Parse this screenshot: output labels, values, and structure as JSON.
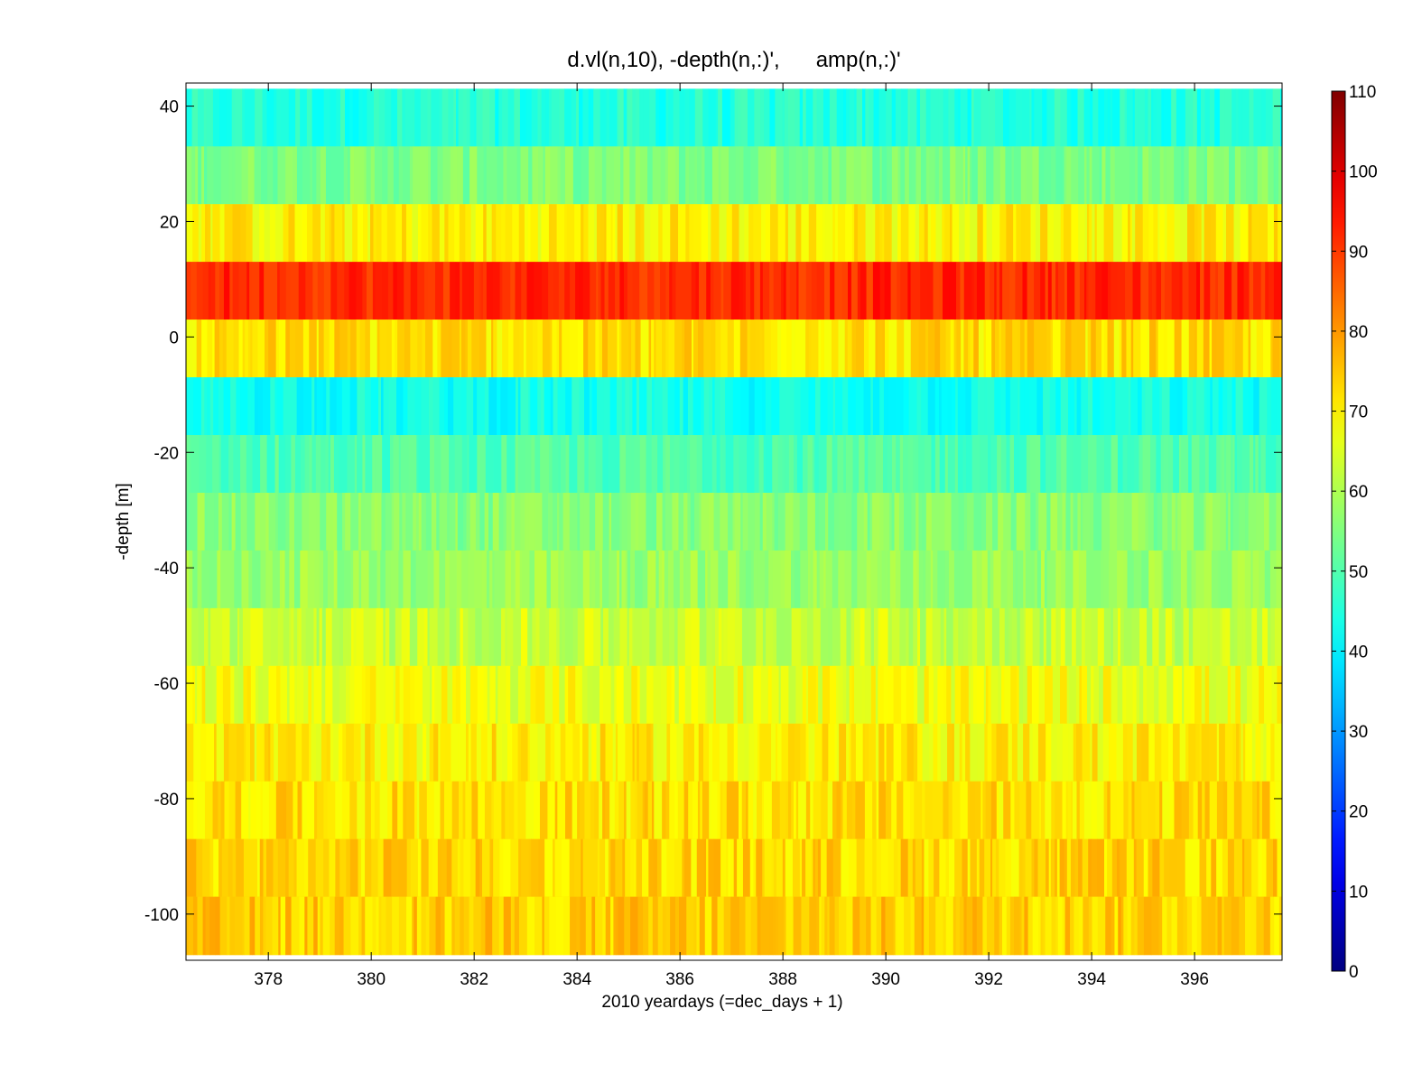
{
  "chart_data": {
    "type": "heatmap",
    "title": "d.vl(n,10), -depth(n,:)',      amp(n,:)'",
    "xlabel": "2010 yeardays (=dec_days + 1)",
    "ylabel": "-depth [m]",
    "xlim": [
      376.4,
      397.7
    ],
    "ylim": [
      -108,
      44
    ],
    "x_ticks": [
      378,
      380,
      382,
      384,
      386,
      388,
      390,
      392,
      394,
      396
    ],
    "y_ticks": [
      40,
      20,
      0,
      -20,
      -40,
      -60,
      -80,
      -100
    ],
    "colorbar": {
      "colormap": "jet",
      "clim": [
        0,
        110
      ],
      "ticks": [
        0,
        10,
        20,
        30,
        40,
        50,
        60,
        70,
        80,
        90,
        100,
        110
      ]
    },
    "bins": [
      {
        "depth": 38,
        "amp": 45
      },
      {
        "depth": 28,
        "amp": 55
      },
      {
        "depth": 18,
        "amp": 70
      },
      {
        "depth": 8,
        "amp": 92
      },
      {
        "depth": -2,
        "amp": 72
      },
      {
        "depth": -12,
        "amp": 43
      },
      {
        "depth": -22,
        "amp": 50
      },
      {
        "depth": -32,
        "amp": 56
      },
      {
        "depth": -42,
        "amp": 58
      },
      {
        "depth": -52,
        "amp": 63
      },
      {
        "depth": -62,
        "amp": 67
      },
      {
        "depth": -72,
        "amp": 70
      },
      {
        "depth": -82,
        "amp": 72
      },
      {
        "depth": -92,
        "amp": 73
      },
      {
        "depth": -102,
        "amp": 74
      }
    ],
    "bin_height_m": 10
  }
}
